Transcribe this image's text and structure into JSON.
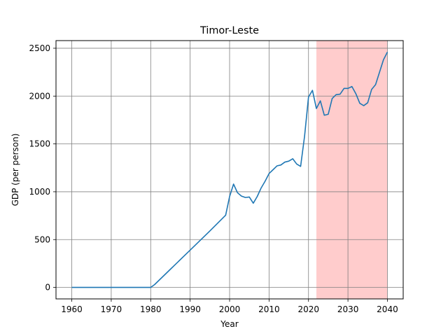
{
  "chart_data": {
    "type": "line",
    "title": "Timor-Leste",
    "xlabel": "Year",
    "ylabel": "GDP (per person)",
    "xlim": [
      1956,
      2044
    ],
    "ylim": [
      -120,
      2580
    ],
    "xticks": [
      1960,
      1970,
      1980,
      1990,
      2000,
      2010,
      2020,
      2030,
      2040
    ],
    "yticks": [
      0,
      500,
      1000,
      1500,
      2000,
      2500
    ],
    "grid": true,
    "highlight_span": {
      "x_start": 2022,
      "x_end": 2040,
      "color": "#ffcccc"
    },
    "line_color": "#1f77b4",
    "series": [
      {
        "x": [
          1960,
          1965,
          1970,
          1975,
          1980,
          1981,
          1985,
          1990,
          1995,
          1999,
          2000,
          2001,
          2002,
          2003,
          2004,
          2005,
          2006,
          2007,
          2008,
          2009,
          2010,
          2011,
          2012,
          2013,
          2014,
          2015,
          2016,
          2017,
          2018,
          2019,
          2020,
          2021,
          2022,
          2023,
          2024,
          2025,
          2026,
          2027,
          2028,
          2029,
          2030,
          2031,
          2032,
          2033,
          2034,
          2035,
          2036,
          2037,
          2038,
          2039,
          2040
        ],
        "values": [
          0,
          0,
          0,
          0,
          0,
          30,
          190,
          390,
          590,
          755,
          950,
          1080,
          990,
          955,
          940,
          945,
          880,
          950,
          1040,
          1110,
          1190,
          1230,
          1270,
          1280,
          1310,
          1320,
          1345,
          1290,
          1265,
          1580,
          1990,
          2060,
          1870,
          1950,
          1800,
          1810,
          1975,
          2015,
          2020,
          2080,
          2080,
          2100,
          2025,
          1925,
          1900,
          1930,
          2070,
          2120,
          2250,
          2380,
          2460
        ]
      }
    ]
  }
}
